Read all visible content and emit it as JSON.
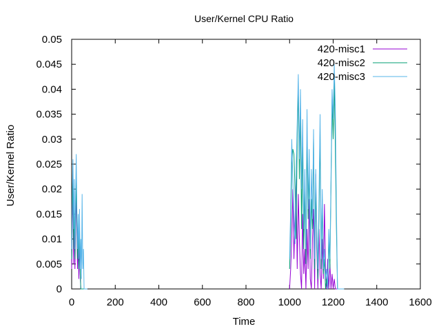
{
  "chart_data": {
    "type": "line",
    "title": "User/Kernel CPU Ratio",
    "xlabel": "Time",
    "ylabel": "User/Kernel Ratio",
    "xlim": [
      0,
      1600
    ],
    "ylim": [
      0,
      0.05
    ],
    "x_ticks": [
      "0",
      "200",
      "400",
      "600",
      "800",
      "1000",
      "1200",
      "1400",
      "1600"
    ],
    "y_ticks": [
      "0",
      "0.005",
      "0.01",
      "0.015",
      "0.02",
      "0.025",
      "0.03",
      "0.035",
      "0.04",
      "0.045",
      "0.05"
    ],
    "grid": false,
    "legend_position": "top-right",
    "series": [
      {
        "name": "420-misc1",
        "color": "#9400d3",
        "x": [
          0,
          3,
          6,
          9,
          12,
          15,
          18,
          21,
          24,
          27,
          30,
          33,
          36,
          39,
          42,
          45,
          48,
          51,
          54,
          57,
          60,
          63,
          66,
          69,
          72,
          1000,
          1005,
          1010,
          1015,
          1020,
          1025,
          1030,
          1035,
          1040,
          1045,
          1050,
          1055,
          1060,
          1065,
          1070,
          1075,
          1080,
          1085,
          1090,
          1095,
          1100,
          1105,
          1110,
          1115,
          1120,
          1125,
          1130,
          1135,
          1140,
          1145,
          1150,
          1155,
          1160,
          1165,
          1170,
          1175,
          1180,
          1185,
          1190,
          1195,
          1200,
          1205,
          1210,
          1215,
          1220,
          1225,
          1230,
          1235,
          1240,
          1245,
          1250
        ],
        "y": [
          0.004,
          0.013,
          0.021,
          0.005,
          0.013,
          0.004,
          0.012,
          0.02,
          0.011,
          0.004,
          0.009,
          0.002,
          0.01,
          0.003,
          0,
          0,
          0,
          0,
          0,
          0,
          0,
          0,
          0,
          0,
          0,
          0,
          0.004,
          0.01,
          0.02,
          0.006,
          0.014,
          0.022,
          0.004,
          0.019,
          0.01,
          0.003,
          0,
          0.015,
          0.003,
          0.008,
          0,
          0.012,
          0.004,
          0.018,
          0.002,
          0,
          0.01,
          0.016,
          0,
          0.023,
          0.008,
          0,
          0.012,
          0.003,
          0,
          0.01,
          0.002,
          0.017,
          0.004,
          0,
          0.006,
          0,
          0.005,
          0,
          0.003,
          0,
          0.002,
          0,
          0,
          0,
          0,
          0,
          0,
          0,
          0,
          0
        ]
      },
      {
        "name": "420-misc2",
        "color": "#009e73",
        "x": [
          0,
          3,
          6,
          9,
          12,
          15,
          18,
          21,
          24,
          27,
          30,
          33,
          36,
          39,
          42,
          45,
          48,
          51,
          54,
          57,
          60,
          63,
          66,
          69,
          72,
          1000,
          1005,
          1010,
          1015,
          1020,
          1025,
          1030,
          1035,
          1040,
          1045,
          1050,
          1055,
          1060,
          1065,
          1070,
          1075,
          1080,
          1085,
          1090,
          1095,
          1100,
          1105,
          1110,
          1115,
          1120,
          1125,
          1130,
          1135,
          1140,
          1145,
          1150,
          1155,
          1160,
          1165,
          1170,
          1175,
          1180,
          1185,
          1190,
          1195,
          1200,
          1205,
          1210,
          1215,
          1220,
          1225,
          1230,
          1235,
          1240,
          1245,
          1250
        ],
        "y": [
          0.006,
          0.016,
          0.022,
          0.008,
          0.018,
          0.006,
          0.014,
          0.023,
          0.013,
          0.006,
          0.012,
          0.004,
          0.013,
          0.004,
          0,
          0,
          0,
          0,
          0,
          0,
          0,
          0,
          0,
          0,
          0,
          0.004,
          0.012,
          0.025,
          0.028,
          0.027,
          0.02,
          0.01,
          0.03,
          0.04,
          0.022,
          0.036,
          0.012,
          0.03,
          0.008,
          0.02,
          0.005,
          0.03,
          0.014,
          0.024,
          0.006,
          0.018,
          0.012,
          0.03,
          0.004,
          0.02,
          0.01,
          0.002,
          0.014,
          0.032,
          0.004,
          0.018,
          0.003,
          0.006,
          0,
          0.002,
          0,
          0.01,
          0.004,
          0.02,
          0.038,
          0.03,
          0.042,
          0.028,
          0.012,
          0,
          0,
          0,
          0,
          0,
          0,
          0
        ]
      },
      {
        "name": "420-misc3",
        "color": "#56b4e9",
        "x": [
          0,
          3,
          6,
          9,
          12,
          15,
          18,
          21,
          24,
          27,
          30,
          33,
          36,
          39,
          42,
          45,
          48,
          51,
          54,
          57,
          60,
          63,
          66,
          69,
          72,
          1000,
          1005,
          1010,
          1015,
          1020,
          1025,
          1030,
          1035,
          1040,
          1045,
          1050,
          1055,
          1060,
          1065,
          1070,
          1075,
          1080,
          1085,
          1090,
          1095,
          1100,
          1105,
          1110,
          1115,
          1120,
          1125,
          1130,
          1135,
          1140,
          1145,
          1150,
          1155,
          1160,
          1165,
          1170,
          1175,
          1180,
          1185,
          1190,
          1195,
          1200,
          1205,
          1210,
          1215,
          1220,
          1225,
          1230,
          1235,
          1240,
          1245,
          1250
        ],
        "y": [
          0.008,
          0.02,
          0.026,
          0.012,
          0.022,
          0.008,
          0.018,
          0.027,
          0.016,
          0.008,
          0.015,
          0.006,
          0.016,
          0.004,
          0.01,
          0.002,
          0.019,
          0.004,
          0.008,
          0,
          0,
          0,
          0,
          0,
          0,
          0.006,
          0.016,
          0.03,
          0.022,
          0.014,
          0.009,
          0.024,
          0.033,
          0.043,
          0.026,
          0.04,
          0.02,
          0.034,
          0.012,
          0.024,
          0.008,
          0.036,
          0.016,
          0.028,
          0.008,
          0.024,
          0.014,
          0.032,
          0.006,
          0.024,
          0.012,
          0.004,
          0.018,
          0.035,
          0.006,
          0.02,
          0.004,
          0.008,
          0.002,
          0.004,
          0,
          0.012,
          0.006,
          0.022,
          0.04,
          0.034,
          0.045,
          0.036,
          0.016,
          0,
          0,
          0,
          0,
          0,
          0,
          0
        ]
      }
    ]
  }
}
